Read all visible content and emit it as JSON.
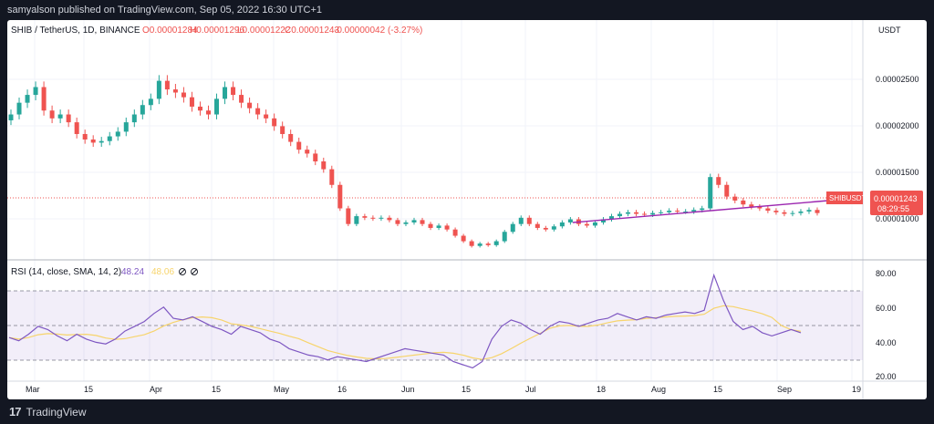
{
  "publisher_line": "samyalson published on TradingView.com, Sep 05, 2022 16:30 UTC+1",
  "legend": {
    "symbol": "SHIB / TetherUS, 1D, BINANCE",
    "open": "O0.00001284",
    "high": "H0.00001296",
    "low": "L0.00001222",
    "close": "C0.00001243",
    "change": "-0.00000042 (-3.27%)"
  },
  "price_axis": {
    "currency": "USDT",
    "ticks": [
      "0.00002500",
      "0.00002000",
      "0.00001500",
      "0.00001000"
    ],
    "symbol_tag": "SHIBUSDT",
    "last_price": "0.00001243",
    "countdown": "08:29:55"
  },
  "rsi": {
    "label": "RSI (14, close, SMA, 14, 2)",
    "value1": "48.24",
    "value2": "48.06",
    "icons": [
      "circle-slash-icon",
      "circle-slash-icon"
    ],
    "ticks": [
      "80.00",
      "60.00",
      "40.00",
      "20.00"
    ]
  },
  "time_axis": [
    "Mar",
    "15",
    "Apr",
    "15",
    "May",
    "16",
    "Jun",
    "15",
    "Jul",
    "18",
    "Aug",
    "15",
    "Sep",
    "19"
  ],
  "brand": "TradingView",
  "colors": {
    "up": "#26a69a",
    "down": "#ef5350",
    "rsi_line": "#7e57c2",
    "rsi_ma": "#f7d46b",
    "trendline": "#9c27b0",
    "price_tag": "#ef5350"
  },
  "chart_data": {
    "type": "candlestick",
    "x_range": [
      "2022-02-23",
      "2022-09-05"
    ],
    "ylim": [
      7e-06,
      3.45e-05
    ],
    "close_series": [
      2.5e-05,
      2.65e-05,
      2.75e-05,
      2.85e-05,
      2.55e-05,
      2.45e-05,
      2.5e-05,
      2.4e-05,
      2.25e-05,
      2.18e-05,
      2.14e-05,
      2.16e-05,
      2.22e-05,
      2.28e-05,
      2.4e-05,
      2.5e-05,
      2.62e-05,
      2.7e-05,
      2.93e-05,
      2.82e-05,
      2.78e-05,
      2.72e-05,
      2.6e-05,
      2.55e-05,
      2.5e-05,
      2.7e-05,
      2.85e-05,
      2.75e-05,
      2.65e-05,
      2.58e-05,
      2.5e-05,
      2.45e-05,
      2.35e-05,
      2.25e-05,
      2.15e-05,
      2.05e-05,
      2e-05,
      1.9e-05,
      1.8e-05,
      1.6e-05,
      1.3e-05,
      1.1e-05,
      1.2e-05,
      1.18e-05,
      1.17e-05,
      1.18e-05,
      1.15e-05,
      1.1e-05,
      1.12e-05,
      1.15e-05,
      1.1e-05,
      1.05e-05,
      1.08e-05,
      1.03e-05,
      9.5e-06,
      8.8e-06,
      8.2e-06,
      8.5e-06,
      8.3e-06,
      8.8e-06,
      1e-05,
      1.1e-05,
      1.18e-05,
      1.1e-05,
      1.05e-05,
      1.03e-05,
      1.07e-05,
      1.12e-05,
      1.16e-05,
      1.1e-05,
      1.08e-05,
      1.12e-05,
      1.16e-05,
      1.2e-05,
      1.23e-05,
      1.25e-05,
      1.23e-05,
      1.22e-05,
      1.24e-05,
      1.25e-05,
      1.27e-05,
      1.26e-05,
      1.26e-05,
      1.28e-05,
      1.3e-05,
      1.7e-05,
      1.6e-05,
      1.45e-05,
      1.4e-05,
      1.35e-05,
      1.32e-05,
      1.3e-05,
      1.27e-05,
      1.25e-05,
      1.23e-05,
      1.24e-05,
      1.26e-05,
      1.28e-05,
      1.24e-05
    ],
    "rsi_ylim": [
      20,
      85
    ],
    "rsi_bands": [
      30,
      50,
      70
    ],
    "rsi_series": [
      45,
      43,
      47,
      52,
      50,
      46,
      43,
      47,
      44,
      42,
      41,
      44,
      49,
      52,
      55,
      60,
      64,
      57,
      56,
      58,
      55,
      52,
      50,
      47,
      52,
      50,
      48,
      44,
      42,
      38,
      36,
      34,
      33,
      31,
      33,
      32,
      31,
      30,
      32,
      34,
      36,
      38,
      37,
      36,
      35,
      34,
      30,
      28,
      26,
      30,
      44,
      52,
      56,
      54,
      50,
      47,
      52,
      55,
      54,
      52,
      54,
      56,
      57,
      60,
      58,
      56,
      58,
      57,
      59,
      60,
      61,
      60,
      62,
      84,
      68,
      55,
      50,
      52,
      48,
      46,
      48,
      50,
      48
    ]
  }
}
